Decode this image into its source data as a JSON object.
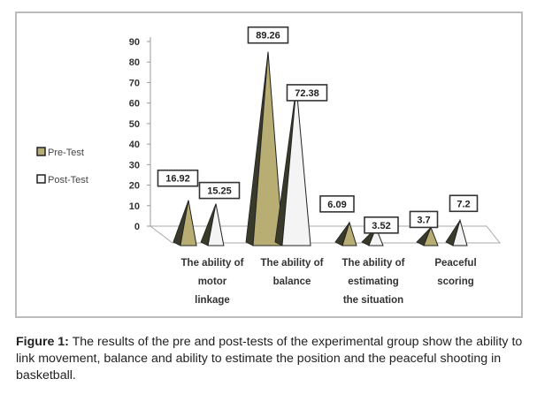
{
  "chart_data": {
    "type": "bar",
    "style": "3d-pyramid",
    "categories": [
      [
        "The ability of",
        "motor",
        "linkage"
      ],
      [
        "The ability of",
        "balance"
      ],
      [
        "The ability of",
        "estimating",
        "the situation"
      ],
      [
        "Peaceful",
        "scoring"
      ]
    ],
    "series": [
      {
        "name": "Pre-Test",
        "values": [
          16.92,
          89.26,
          6.09,
          3.7
        ],
        "labels": [
          "16.92",
          "89.26",
          "6.09",
          "3.7"
        ],
        "color": "#b8ad72"
      },
      {
        "name": "Post-Test",
        "values": [
          15.25,
          72.38,
          3.52,
          7.2
        ],
        "labels": [
          "15.25",
          "72.38",
          "3.52",
          "7.2"
        ],
        "color": "#f4f4f4"
      }
    ],
    "yticks": [
      "0",
      "10",
      "20",
      "30",
      "40",
      "50",
      "60",
      "70",
      "80",
      "90"
    ],
    "ylim": [
      0,
      90
    ],
    "legend": "left"
  },
  "caption": {
    "label": "Figure 1:",
    "text": " The results of the pre and post-tests of the experimental group show the ability to link movement, balance and ability to estimate the position and the peaceful shooting in basketball."
  }
}
